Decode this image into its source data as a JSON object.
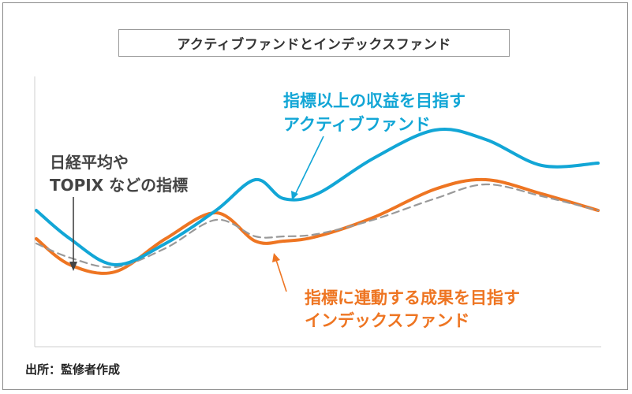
{
  "title": "アクティブファンドとインデックスファンド",
  "source": "出所：監修者作成",
  "colors": {
    "active": "#12a6d6",
    "index": "#ee7522",
    "benchmark": "#999999",
    "annotation_dark": "#444444"
  },
  "annotations": {
    "active": [
      "指標以上の収益を目指す",
      "アクティブファンド"
    ],
    "benchmark": [
      "日経平均や",
      "TOPIX などの指標"
    ],
    "index": [
      "指標に連動する成果を目指す",
      "インデックスファンド"
    ]
  },
  "chart_data": {
    "type": "line",
    "title": "アクティブファンドとインデックスファンド",
    "xlabel": "",
    "ylabel": "",
    "axis_ticks": false,
    "grid": false,
    "legend": "none (series labelled by callouts)",
    "xlim": [
      0,
      10
    ],
    "ylim": [
      0,
      10
    ],
    "series": [
      {
        "x": [
          0,
          0.6,
          1.4,
          2.3,
          3.2,
          3.9,
          4.4,
          5.0,
          6.0,
          7.1,
          8.0,
          9.0,
          10.0
        ],
        "values": [
          5.1,
          3.9,
          2.8,
          3.7,
          5.1,
          6.4,
          5.6,
          5.8,
          7.3,
          8.5,
          8.1,
          7.0,
          7.1
        ],
        "color": "active"
      },
      {
        "x": [
          0,
          0.6,
          1.4,
          2.3,
          3.2,
          3.9,
          4.4,
          5.0,
          6.0,
          7.1,
          8.0,
          9.0,
          10.0
        ],
        "values": [
          3.9,
          2.8,
          2.5,
          3.9,
          5.0,
          3.8,
          3.8,
          4.0,
          4.8,
          6.0,
          6.4,
          5.8,
          5.1
        ],
        "color": "index"
      },
      {
        "x": [
          0,
          0.6,
          1.4,
          2.3,
          3.2,
          3.9,
          4.4,
          5.0,
          6.0,
          7.1,
          8.0,
          9.0,
          10.0
        ],
        "values": [
          3.7,
          3.1,
          2.7,
          3.5,
          4.7,
          4.0,
          4.0,
          4.1,
          4.7,
          5.6,
          6.2,
          5.7,
          5.1
        ],
        "color": "benchmark",
        "dashed": true
      }
    ]
  }
}
